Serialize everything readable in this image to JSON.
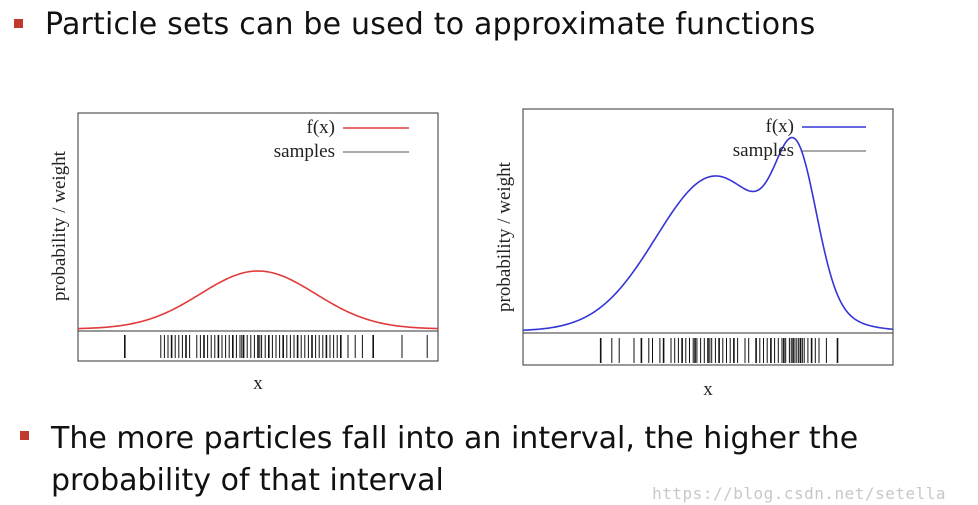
{
  "bullets": [
    {
      "text": "Particle sets can be used to approximate functions"
    },
    {
      "text": "The more particles fall into an interval, the higher the probability of that interval"
    }
  ],
  "watermark": "https://blog.csdn.net/setella",
  "colors": {
    "bullet": "#c0392b",
    "left_curve": "#e23b3b",
    "right_curve": "#3535d6"
  },
  "chart_data": [
    {
      "type": "line",
      "ylabel": "probability / weight",
      "xlabel": "x",
      "legend": [
        {
          "label": "f(x)",
          "color": "#e23b3b"
        },
        {
          "label": "samples",
          "color": "#555555"
        }
      ],
      "legend_position": "top-right",
      "curve": {
        "kind": "gaussian",
        "mu": 0.5,
        "sigma": 0.16,
        "peak": 0.2
      },
      "samples": [
        0.13,
        0.23,
        0.24,
        0.25,
        0.26,
        0.27,
        0.28,
        0.29,
        0.3,
        0.31,
        0.33,
        0.34,
        0.35,
        0.36,
        0.37,
        0.38,
        0.39,
        0.4,
        0.41,
        0.42,
        0.43,
        0.44,
        0.45,
        0.455,
        0.46,
        0.47,
        0.48,
        0.49,
        0.5,
        0.505,
        0.51,
        0.52,
        0.53,
        0.54,
        0.55,
        0.56,
        0.57,
        0.58,
        0.59,
        0.6,
        0.61,
        0.62,
        0.63,
        0.64,
        0.65,
        0.66,
        0.67,
        0.68,
        0.69,
        0.7,
        0.71,
        0.72,
        0.73,
        0.75,
        0.77,
        0.79,
        0.82,
        0.9,
        0.97
      ]
    },
    {
      "type": "line",
      "ylabel": "probability / weight",
      "xlabel": "x",
      "legend": [
        {
          "label": "f(x)",
          "color": "#3535d6"
        },
        {
          "label": "samples",
          "color": "#555555"
        }
      ],
      "legend_position": "top-right",
      "curve": {
        "kind": "mixture",
        "components": [
          {
            "mu": 0.52,
            "sigma": 0.16,
            "weight": 0.62
          },
          {
            "mu": 0.74,
            "sigma": 0.055,
            "weight": 0.52
          }
        ]
      },
      "samples": [
        0.21,
        0.24,
        0.26,
        0.3,
        0.32,
        0.34,
        0.35,
        0.37,
        0.38,
        0.4,
        0.41,
        0.42,
        0.43,
        0.44,
        0.45,
        0.46,
        0.465,
        0.47,
        0.48,
        0.49,
        0.5,
        0.505,
        0.51,
        0.52,
        0.53,
        0.54,
        0.55,
        0.56,
        0.57,
        0.58,
        0.6,
        0.61,
        0.63,
        0.64,
        0.65,
        0.66,
        0.67,
        0.68,
        0.69,
        0.7,
        0.705,
        0.71,
        0.72,
        0.725,
        0.73,
        0.735,
        0.74,
        0.745,
        0.75,
        0.755,
        0.76,
        0.77,
        0.78,
        0.79,
        0.8,
        0.82,
        0.85
      ]
    }
  ]
}
